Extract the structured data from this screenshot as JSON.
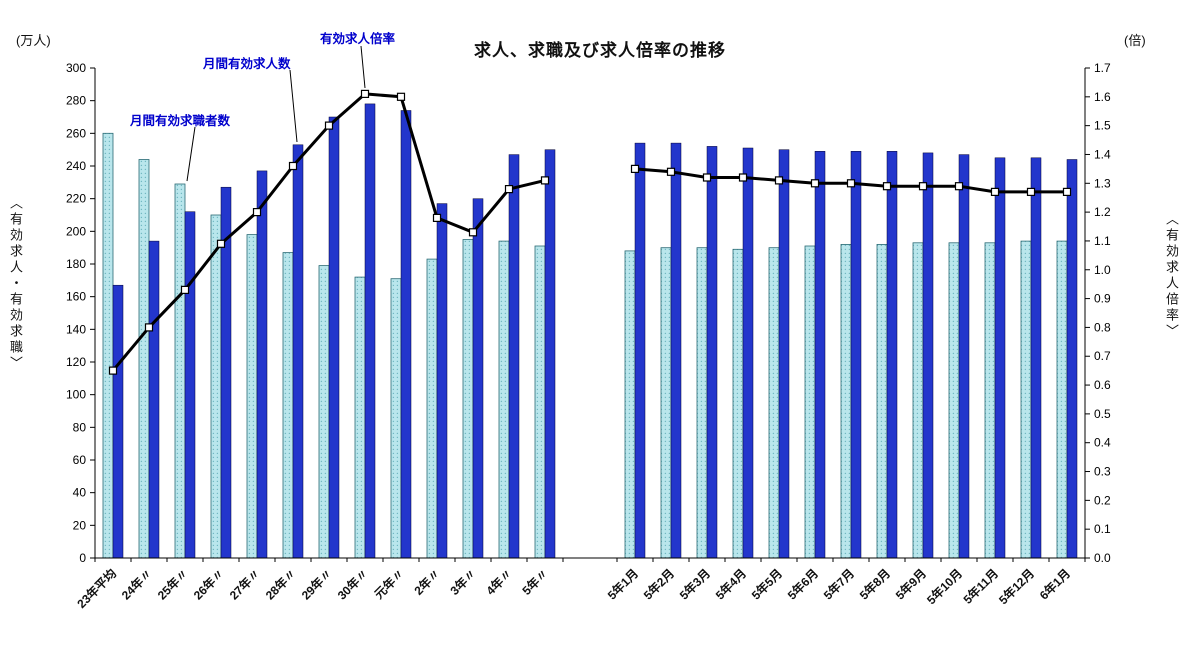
{
  "title": "求人、求職及び求人倍率の推移",
  "left_axis_unit": "(万人)",
  "right_axis_unit": "(倍)",
  "left_axis_label": "〈有効求人・有効求職〉",
  "right_axis_label": "〈有効求人倍率〉",
  "annotations": {
    "seekers_label": "月間有効求職者数",
    "openings_label": "月間有効求人数",
    "ratio_label": "有効求人倍率"
  },
  "colors": {
    "seekers_bar": "#b9e6ec",
    "seekers_dot": "#6fb6c0",
    "seekers_edge": "#2a6a74",
    "openings_bar": "#2336cc",
    "openings_edge": "#000033",
    "ratio_line": "#000000",
    "marker_fill": "#ffffff",
    "annotation_text": "#0000cc",
    "axis_text": "#000000"
  },
  "chart_data": {
    "type": "bar",
    "subtype": "grouped-bars-with-line",
    "title": "求人、求職及び求人倍率の推移",
    "categories": [
      "23年平均",
      "24年〃",
      "25年〃",
      "26年〃",
      "27年〃",
      "28年〃",
      "29年〃",
      "30年〃",
      "元年〃",
      "2年〃",
      "3年〃",
      "4年〃",
      "5年〃",
      "5年1月",
      "5年2月",
      "5年3月",
      "5年4月",
      "5年5月",
      "5年6月",
      "5年7月",
      "5年8月",
      "5年9月",
      "5年10月",
      "5年11月",
      "5年12月",
      "6年1月"
    ],
    "gap_after_index": 12,
    "series": [
      {
        "name": "月間有効求職者数",
        "type": "bar",
        "axis": "left",
        "values": [
          260,
          244,
          229,
          210,
          198,
          187,
          179,
          172,
          171,
          183,
          195,
          194,
          191,
          188,
          190,
          190,
          189,
          190,
          191,
          192,
          192,
          193,
          193,
          193,
          194,
          194
        ]
      },
      {
        "name": "月間有効求人数",
        "type": "bar",
        "axis": "left",
        "values": [
          167,
          194,
          212,
          227,
          237,
          253,
          270,
          278,
          274,
          217,
          220,
          247,
          250,
          254,
          254,
          252,
          251,
          250,
          249,
          249,
          249,
          248,
          247,
          245,
          245,
          244
        ]
      },
      {
        "name": "有効求人倍率",
        "type": "line",
        "axis": "right",
        "values": [
          0.65,
          0.8,
          0.93,
          1.09,
          1.2,
          1.36,
          1.5,
          1.61,
          1.6,
          1.18,
          1.13,
          1.28,
          1.31,
          1.35,
          1.34,
          1.32,
          1.32,
          1.31,
          1.3,
          1.3,
          1.29,
          1.29,
          1.29,
          1.27,
          1.27,
          1.27
        ]
      }
    ],
    "left_ylim": [
      0,
      300
    ],
    "left_step": 20,
    "right_ylim": [
      0,
      1.7
    ],
    "right_step": 0.1,
    "ylabel_left": "〈有効求人・有効求職〉(万人)",
    "ylabel_right": "〈有効求人倍率〉(倍)",
    "grid": false,
    "legend_position": "inline-annotations"
  }
}
